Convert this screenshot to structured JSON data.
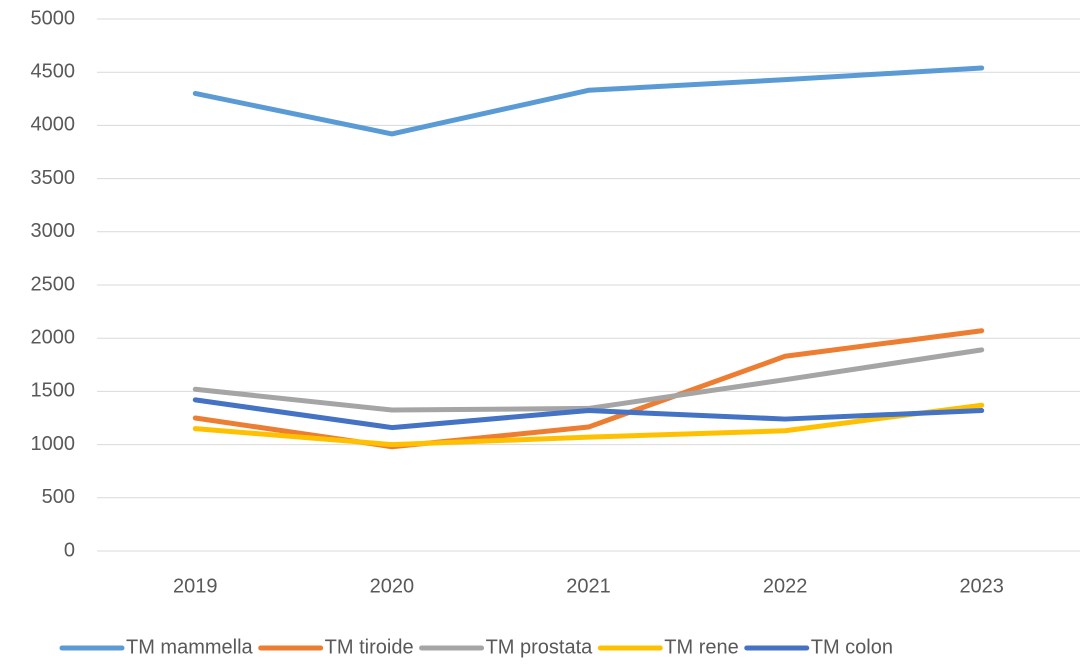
{
  "chart_data": {
    "type": "line",
    "categories": [
      "2019",
      "2020",
      "2021",
      "2022",
      "2023"
    ],
    "series": [
      {
        "name": "TM mammella",
        "color": "#5b9bd5",
        "values": [
          4300,
          3920,
          4330,
          4430,
          4540
        ]
      },
      {
        "name": "TM tiroide",
        "color": "#ed7d31",
        "values": [
          1250,
          980,
          1165,
          1830,
          2070
        ]
      },
      {
        "name": "TM prostata",
        "color": "#a5a5a5",
        "values": [
          1520,
          1325,
          1340,
          1610,
          1890
        ]
      },
      {
        "name": "TM rene",
        "color": "#ffc000",
        "values": [
          1150,
          1000,
          1070,
          1130,
          1370
        ]
      },
      {
        "name": "TM colon",
        "color": "#4472c4",
        "values": [
          1420,
          1160,
          1320,
          1240,
          1320
        ]
      }
    ],
    "ylim": [
      0,
      5000
    ],
    "yticks": [
      0,
      500,
      1000,
      1500,
      2000,
      2500,
      3000,
      3500,
      4000,
      4500,
      5000
    ],
    "grid": true,
    "legend": "bottom"
  }
}
